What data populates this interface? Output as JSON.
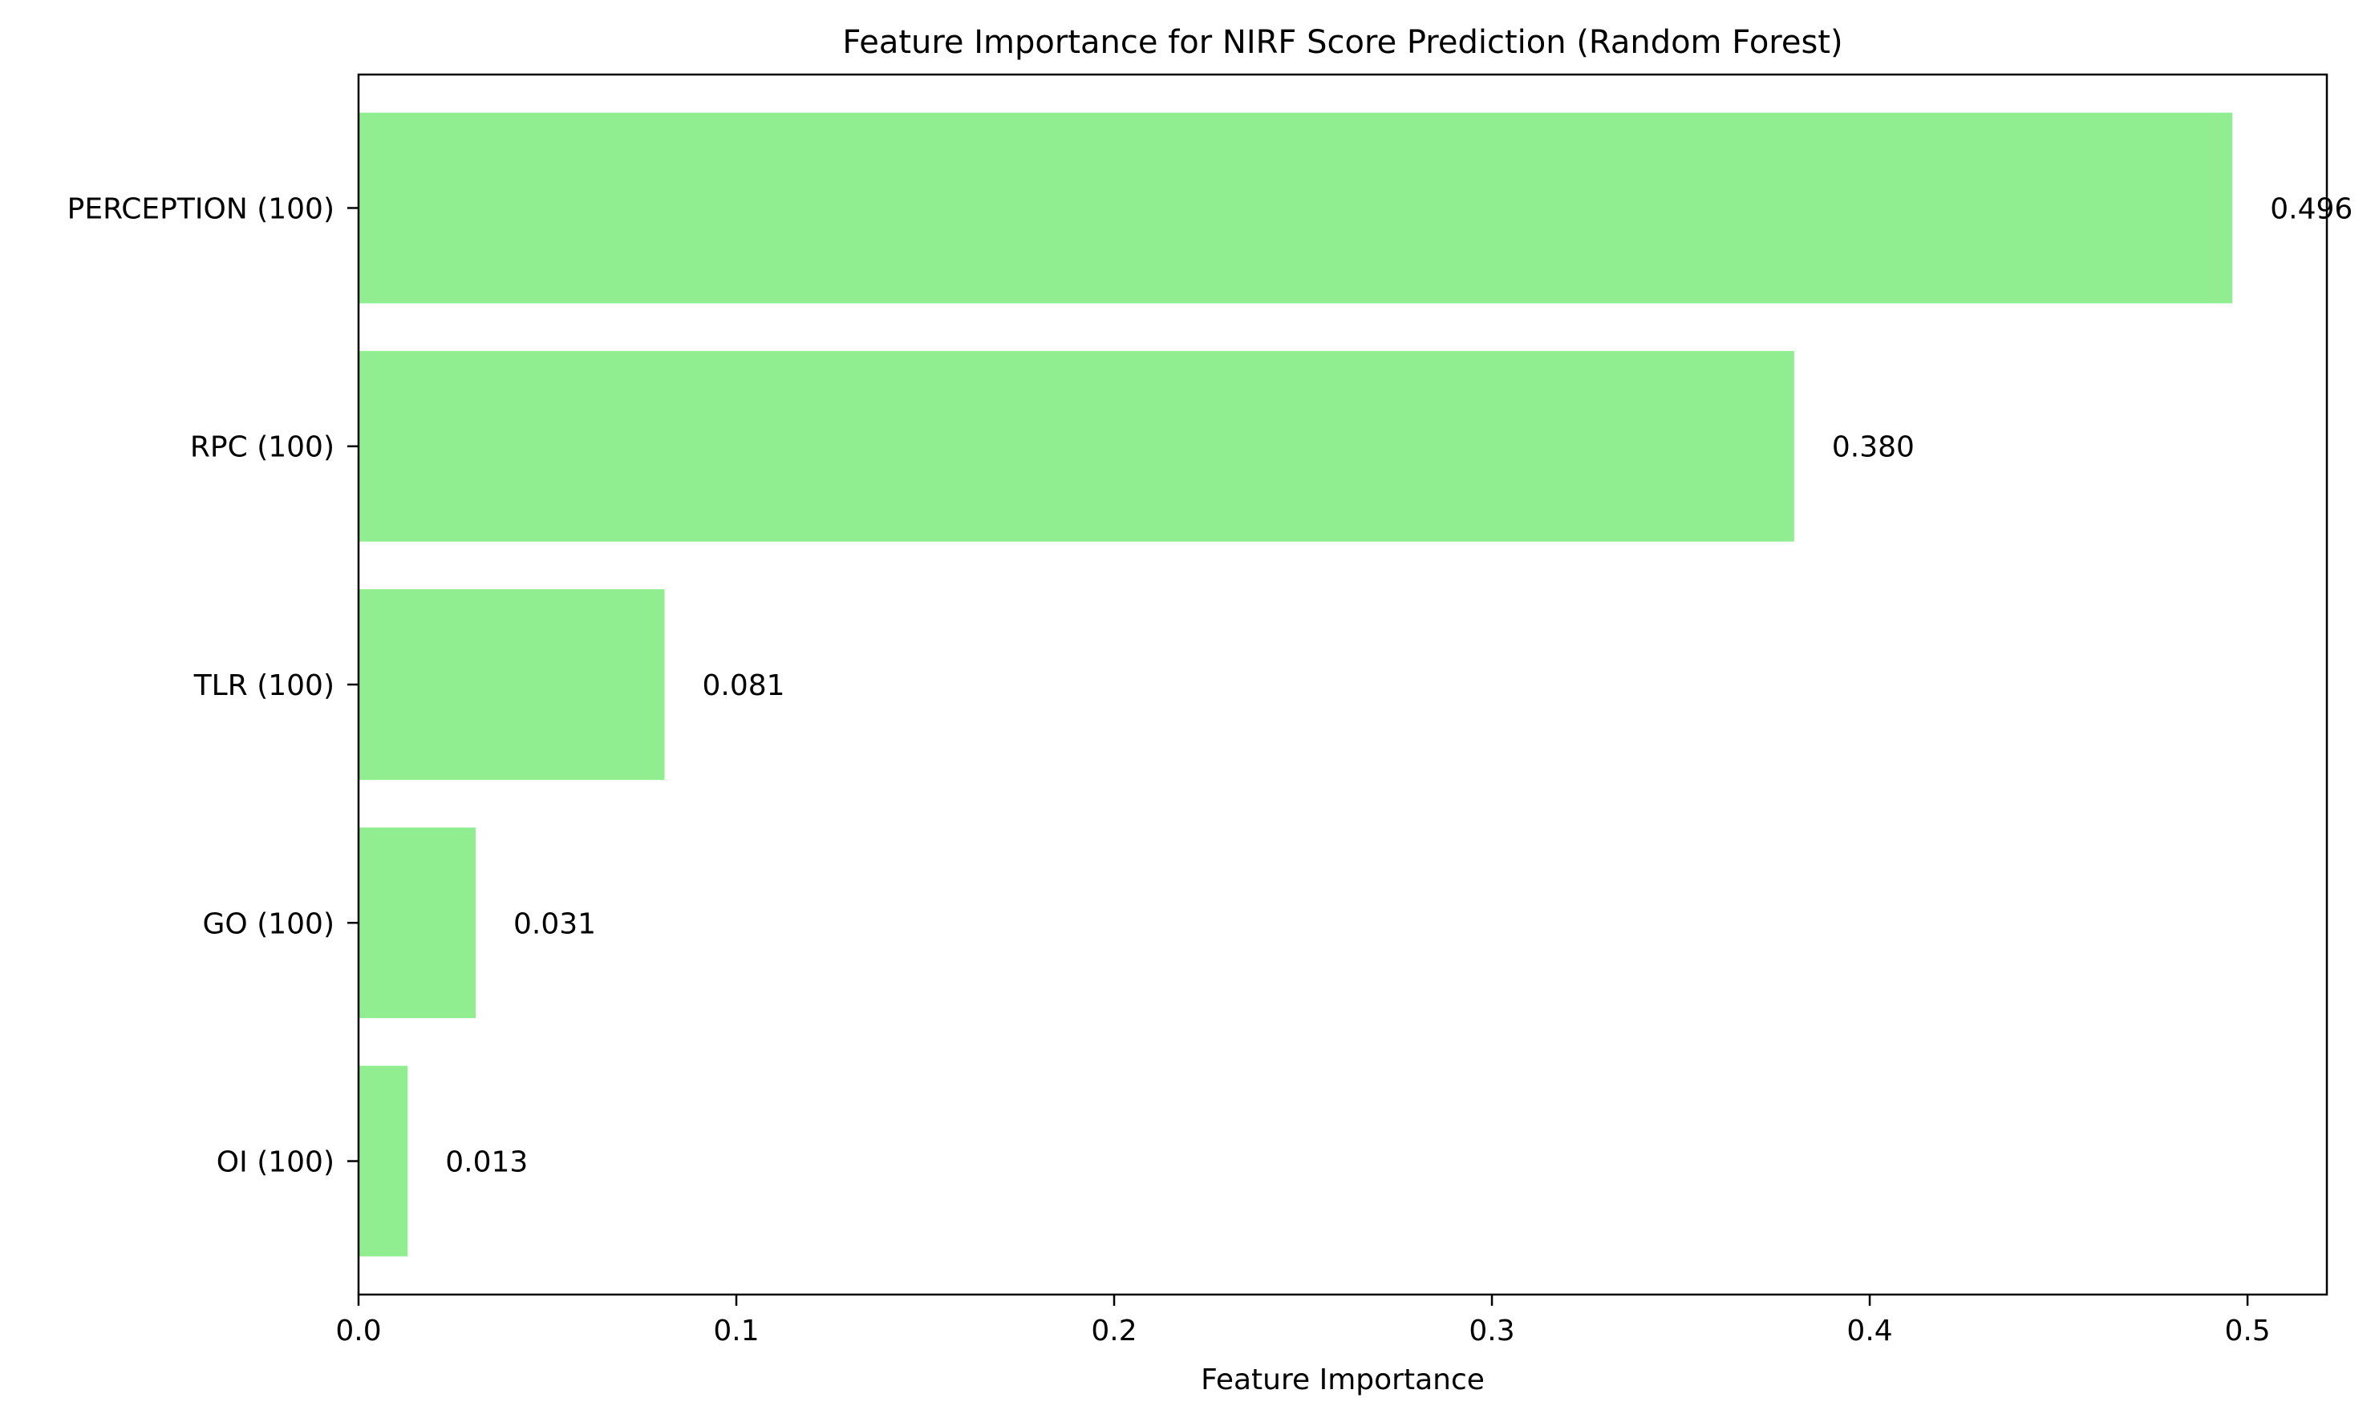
{
  "chart_data": {
    "type": "bar",
    "orientation": "horizontal",
    "title": "Feature Importance for NIRF Score Prediction (Random Forest)",
    "xlabel": "Feature Importance",
    "ylabel": "",
    "categories": [
      "PERCEPTION (100)",
      "RPC (100)",
      "TLR (100)",
      "GO (100)",
      "OI (100)"
    ],
    "values": [
      0.496,
      0.38,
      0.081,
      0.031,
      0.013
    ],
    "value_labels": [
      "0.496",
      "0.380",
      "0.081",
      "0.031",
      "0.013"
    ],
    "xlim": [
      0,
      0.521
    ],
    "xticks": [
      0.0,
      0.1,
      0.2,
      0.3,
      0.4,
      0.5
    ],
    "xtick_labels": [
      "0.0",
      "0.1",
      "0.2",
      "0.3",
      "0.4",
      "0.5"
    ],
    "grid": false,
    "bar_color": "#90ee90"
  }
}
